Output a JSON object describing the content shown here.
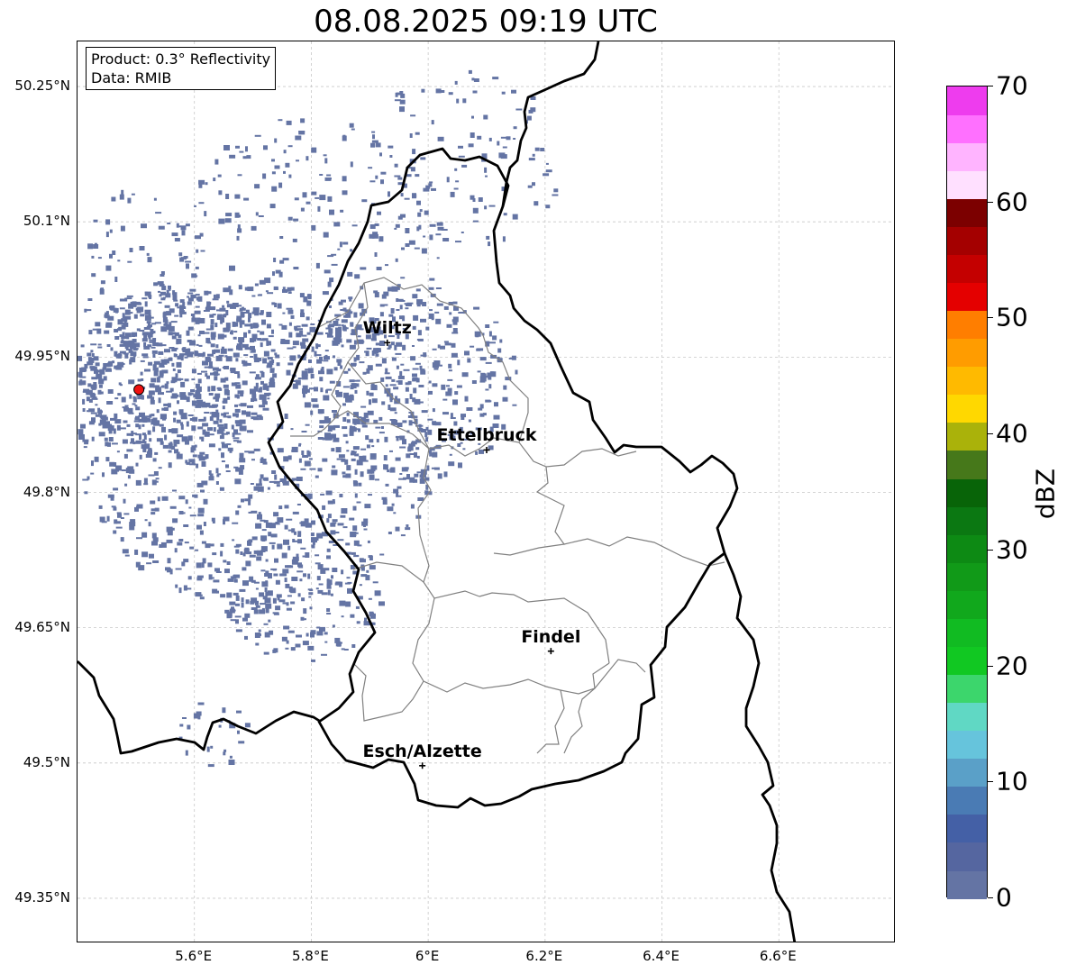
{
  "title": "08.08.2025 09:19 UTC",
  "info_box": {
    "product": "Product: 0.3° Reflectivity",
    "data_source": "Data: RMIB"
  },
  "extent": {
    "lon_min": 5.4,
    "lon_max": 6.8,
    "lat_min": 49.3,
    "lat_max": 50.3
  },
  "lat_ticks": [
    {
      "value": 50.25,
      "label": "50.25°N"
    },
    {
      "value": 50.1,
      "label": "50.1°N"
    },
    {
      "value": 49.95,
      "label": "49.95°N"
    },
    {
      "value": 49.8,
      "label": "49.8°N"
    },
    {
      "value": 49.65,
      "label": "49.65°N"
    },
    {
      "value": 49.5,
      "label": "49.5°N"
    },
    {
      "value": 49.35,
      "label": "49.35°N"
    }
  ],
  "lon_ticks": [
    {
      "value": 5.6,
      "label": "5.6°E"
    },
    {
      "value": 5.8,
      "label": "5.8°E"
    },
    {
      "value": 6.0,
      "label": "6°E"
    },
    {
      "value": 6.2,
      "label": "6.2°E"
    },
    {
      "value": 6.4,
      "label": "6.4°E"
    },
    {
      "value": 6.6,
      "label": "6.6°E"
    }
  ],
  "cities": [
    {
      "name": "Wiltz",
      "lon": 5.93,
      "lat": 49.966
    },
    {
      "name": "Ettelbruck",
      "lon": 6.1,
      "lat": 49.847
    },
    {
      "name": "Findel",
      "lon": 6.21,
      "lat": 49.624
    },
    {
      "name": "Esch/Alzette",
      "lon": 5.99,
      "lat": 49.497
    }
  ],
  "radar_site": {
    "lon": 5.505,
    "lat": 49.914,
    "color": "#ee1111"
  },
  "colorbar": {
    "label": "dBZ",
    "min": 0,
    "max": 70,
    "ticks": [
      0,
      10,
      20,
      30,
      40,
      50,
      60,
      70
    ],
    "colors": [
      "#6474a4",
      "#5566a0",
      "#4460a6",
      "#4a7bb4",
      "#5aa0c8",
      "#66c4dc",
      "#60d8c4",
      "#3cd66c",
      "#11c822",
      "#11bb22",
      "#11a81c",
      "#119a18",
      "#0d8a14",
      "#0b7812",
      "#086408",
      "#46781a",
      "#aab20a",
      "#ffd800",
      "#ffba00",
      "#ff9c00",
      "#ff7e00",
      "#e40000",
      "#c40000",
      "#a40000",
      "#7c0000",
      "#ffe0ff",
      "#ffb4ff",
      "#ff70ff",
      "#ee3cee"
    ]
  },
  "colors": {
    "echo": "#6474a4",
    "border": "#000000",
    "canton_line": "#808080",
    "grid": "#c8c8c8"
  }
}
